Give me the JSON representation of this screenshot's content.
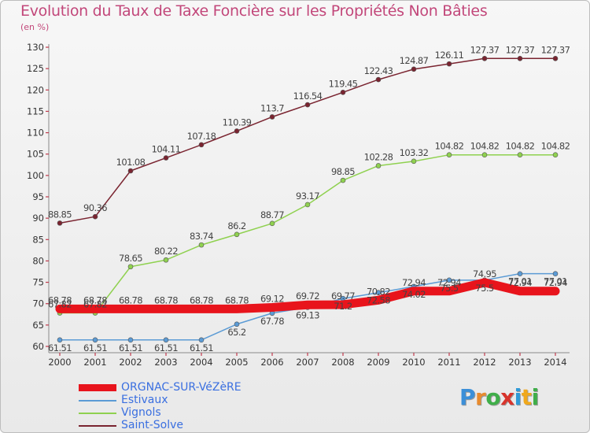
{
  "title": "Evolution du Taux de Taxe Foncière sur les Propriétés Non Bâties",
  "subtitle": "(en %)",
  "logo": {
    "letters": [
      "P",
      "r",
      "o",
      "x",
      "i",
      "t",
      "i"
    ]
  },
  "chart_data": {
    "type": "line",
    "title": "Evolution du Taux de Taxe Foncière sur les Propriétés Non Bâties",
    "ylabel": "(en %)",
    "xlabel": "",
    "ylim": [
      60,
      130
    ],
    "yticks": [
      60,
      65,
      70,
      75,
      80,
      85,
      90,
      95,
      100,
      105,
      110,
      115,
      120,
      125,
      130
    ],
    "grid": false,
    "legend_position": "bottom-left",
    "categories": [
      "2000",
      "2001",
      "2002",
      "2003",
      "2004",
      "2005",
      "2006",
      "2007",
      "2008",
      "2009",
      "2010",
      "2011",
      "2012",
      "2013",
      "2014"
    ],
    "series": [
      {
        "name": "ORGNAC-SUR-VéZèRE",
        "color": "#e8141c",
        "values": [
          68.78,
          68.78,
          68.78,
          68.78,
          68.78,
          68.78,
          69.12,
          69.72,
          69.77,
          70.82,
          72.94,
          72.94,
          74.95,
          72.94,
          72.94
        ],
        "labels": [
          "68.78",
          "68.78",
          "68.78",
          "68.78",
          "68.78",
          "68.78",
          "69.12",
          "69.72",
          "69.77",
          "70.82",
          "72.94",
          "72.94",
          "74.95",
          "72.94",
          "72.94"
        ],
        "markers": false
      },
      {
        "name": "Estivaux",
        "color": "#5b9bd5",
        "values": [
          61.51,
          61.51,
          61.51,
          61.51,
          61.51,
          65.2,
          67.78,
          69.13,
          71.2,
          72.58,
          74.02,
          75.5,
          75.5,
          77.01,
          77.01
        ],
        "labels": [
          "61.51",
          "61.51",
          "61.51",
          "61.51",
          "61.51",
          "65.2",
          "67.78",
          "69.13",
          "71.2",
          "72.58",
          "74.02",
          "75.5",
          "75.5",
          "77.01",
          "77.01"
        ],
        "markers": true
      },
      {
        "name": "Vignols",
        "color": "#8fd14f",
        "values": [
          67.82,
          67.82,
          78.65,
          80.22,
          83.74,
          86.2,
          88.77,
          93.17,
          98.85,
          102.28,
          103.32,
          104.82,
          104.82,
          104.82,
          104.82
        ],
        "labels": [
          "67.82",
          "67.82",
          "78.65",
          "80.22",
          "83.74",
          "86.2",
          "88.77",
          "93.17",
          "98.85",
          "102.28",
          "103.32",
          "104.82",
          "104.82",
          "104.82",
          "104.82"
        ],
        "markers": true
      },
      {
        "name": "Saint-Solve",
        "color": "#7a2430",
        "values": [
          88.85,
          90.36,
          101.08,
          104.11,
          107.18,
          110.39,
          113.7,
          116.54,
          119.45,
          122.43,
          124.87,
          126.11,
          127.37,
          127.37,
          127.37
        ],
        "labels": [
          "88.85",
          "90.36",
          "101.08",
          "104.11",
          "107.18",
          "110.39",
          "113.7",
          "116.54",
          "119.45",
          "122.43",
          "124.87",
          "126.11",
          "127.37",
          "127.37",
          "127.37"
        ],
        "markers": true
      }
    ]
  }
}
